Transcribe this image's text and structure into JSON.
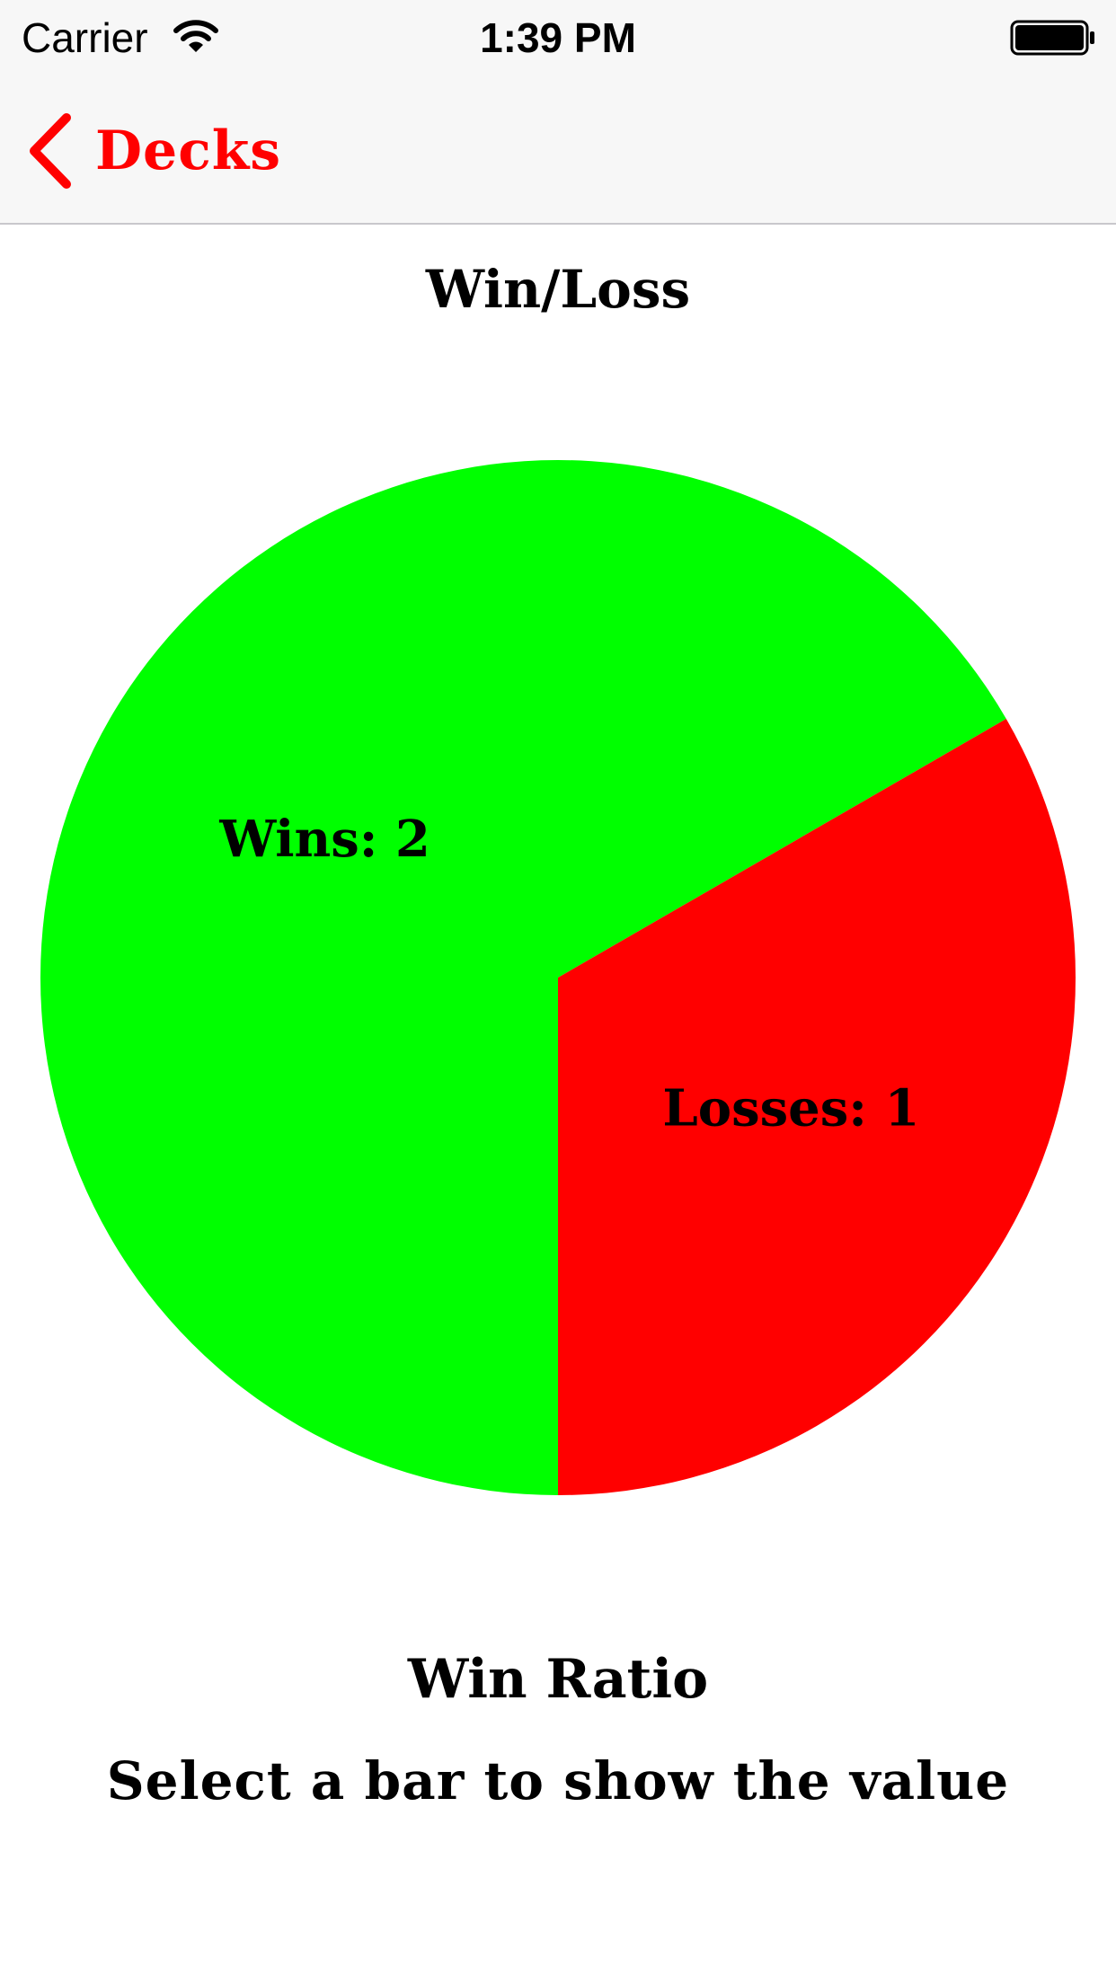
{
  "status_bar": {
    "carrier": "Carrier",
    "time": "1:39 PM",
    "wifi_icon": "wifi-icon",
    "battery_icon": "battery-full-icon"
  },
  "nav": {
    "back_label": "Decks",
    "back_icon": "chevron-left-icon",
    "accent_color": "#ff0000"
  },
  "chart_title": "Win/Loss",
  "chart_data": {
    "type": "pie",
    "slices": [
      {
        "name": "Wins",
        "value": 2,
        "label": "Wins: 2",
        "color": "#00ff00"
      },
      {
        "name": "Losses",
        "value": 1,
        "label": "Losses: 1",
        "color": "#ff0000"
      }
    ]
  },
  "win_ratio": {
    "title": "Win Ratio",
    "hint": "Select a bar to show the value"
  }
}
